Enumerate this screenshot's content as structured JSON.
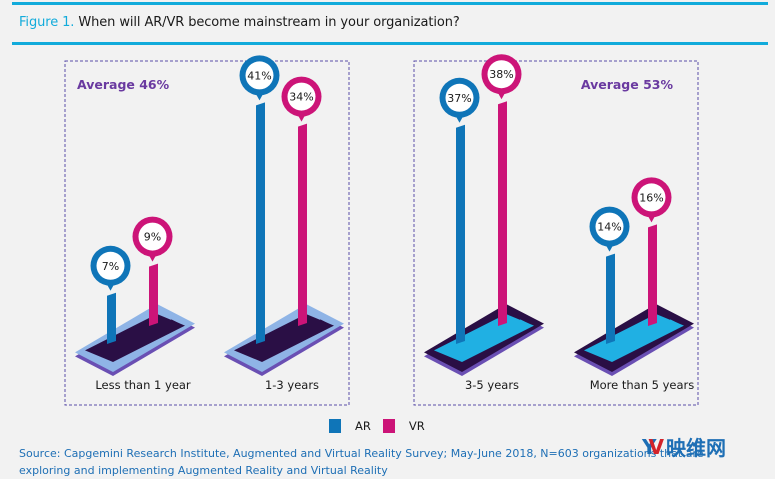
{
  "figure": {
    "label": "Figure 1.",
    "title": "When will AR/VR become mainstream in your organization?"
  },
  "chart_data": {
    "type": "bar",
    "title": "When will AR/VR become mainstream in your organization?",
    "categories": [
      "Less than 1 year",
      "1-3 years",
      "3-5 years",
      "More than 5 years"
    ],
    "series": [
      {
        "name": "AR",
        "color": "#0f75b8",
        "values": [
          7,
          41,
          37,
          14
        ]
      },
      {
        "name": "VR",
        "color": "#cc1478",
        "values": [
          9,
          34,
          38,
          16
        ]
      }
    ],
    "groups": [
      {
        "label": "Average 46%",
        "categories": [
          "Less than 1 year",
          "1-3 years"
        ]
      },
      {
        "label": "Average 53%",
        "categories": [
          "3-5 years",
          "More than 5 years"
        ]
      }
    ],
    "value_suffix": "%",
    "legend": "bottom-center",
    "grid": false
  },
  "legend": {
    "items": [
      {
        "label": "AR",
        "color": "#0f75b8"
      },
      {
        "label": "VR",
        "color": "#cc1478"
      }
    ]
  },
  "source": "Source: Capgemini Research Institute, Augmented and Virtual Reality Survey; May-June 2018, N=603 organizations that are exploring and implementing Augmented Reality and Virtual Reality",
  "watermark": {
    "logo": "YV",
    "text": "映维网"
  }
}
